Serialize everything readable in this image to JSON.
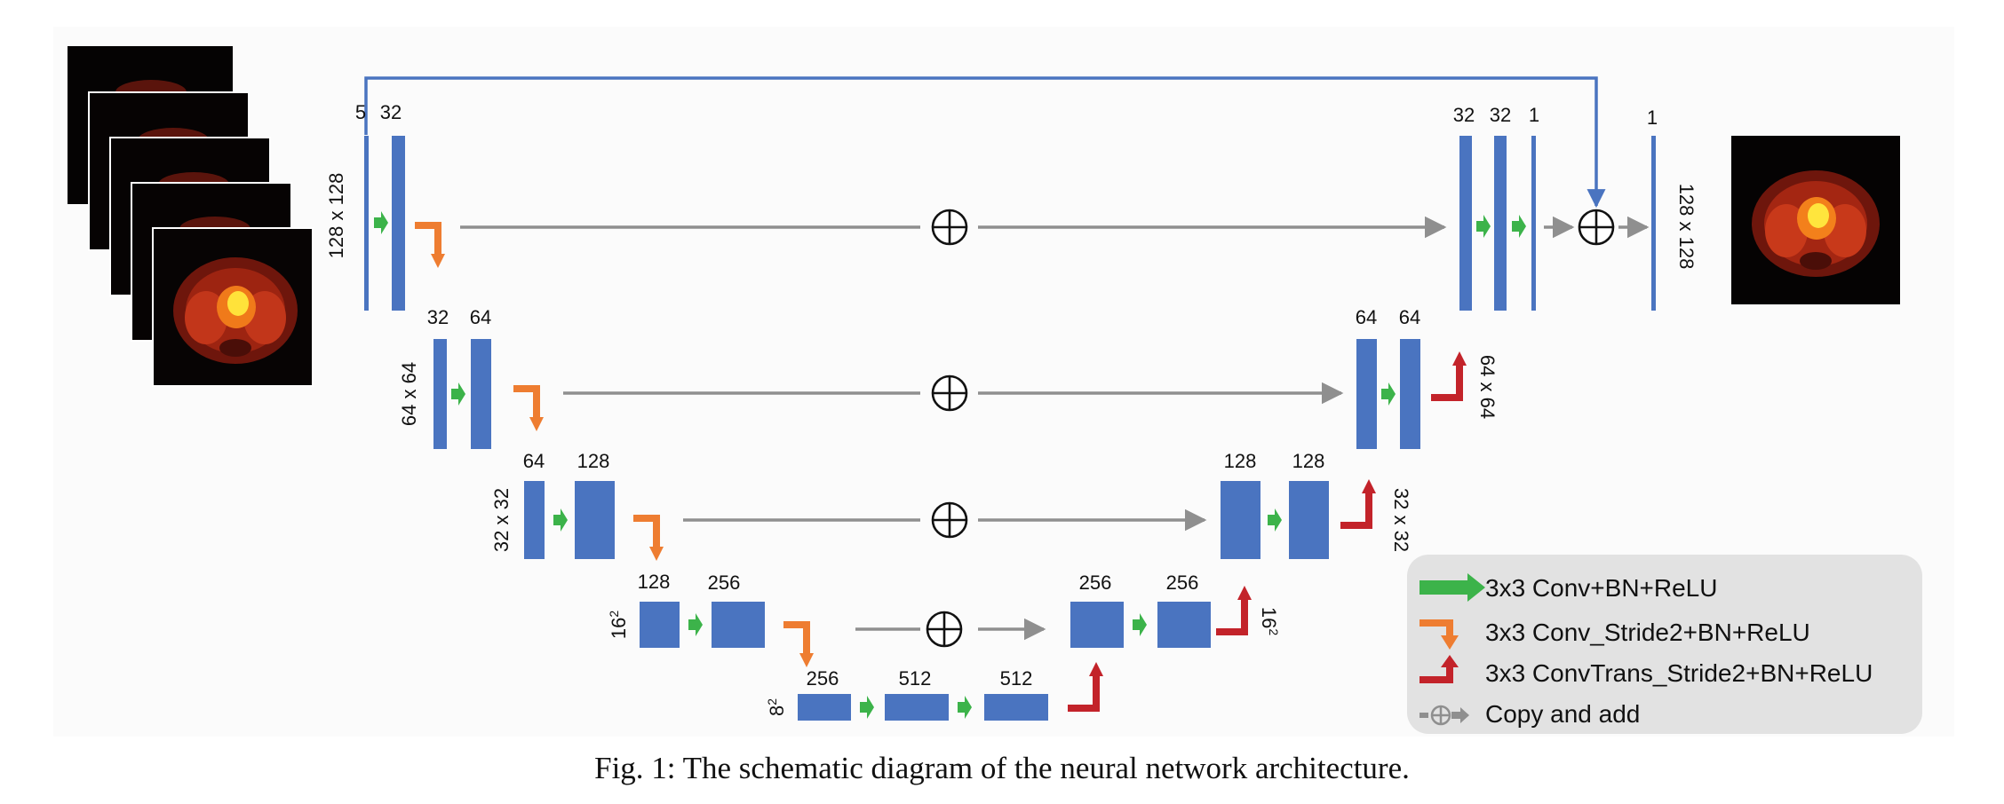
{
  "caption": "Fig. 1: The schematic diagram of the neural network architecture.",
  "colors": {
    "block": "#4a74c0",
    "conv": "#3cb34a",
    "down": "#ee7d31",
    "up": "#c3232a",
    "arrow": "#8f8f8f",
    "skip": "#4a74c0",
    "legend_bg": "#e2e2e2",
    "panel_bg": "#fbfbfb"
  },
  "levels": {
    "l1": {
      "size": "128 x 128",
      "ch_in": "5",
      "ch_a": "32",
      "dec_a": "32",
      "dec_b": "32",
      "dec_out": "1",
      "final": "1",
      "out_size": "128 x 128"
    },
    "l2": {
      "enc_a": "32",
      "enc_b": "64",
      "size": "64 x 64",
      "dec_a": "64",
      "dec_b": "64",
      "dec_size": "64 x 64"
    },
    "l3": {
      "enc_a": "64",
      "enc_b": "128",
      "size": "32 x 32",
      "dec_a": "128",
      "dec_b": "128",
      "dec_size": "32 x 32"
    },
    "l4": {
      "enc_a": "128",
      "enc_b": "256",
      "size": "16",
      "sup": "2",
      "dec_a": "256",
      "dec_b": "256",
      "dec_size": "16",
      "dec_sup": "2"
    },
    "l5": {
      "a": "256",
      "b": "512",
      "c": "512",
      "size": "8",
      "sup": "2"
    }
  },
  "legend": {
    "items": [
      {
        "icon": "green-arrow",
        "label": "3x3 Conv+BN+ReLU"
      },
      {
        "icon": "orange-down-arrow",
        "label": "3x3 Conv_Stride2+BN+ReLU"
      },
      {
        "icon": "red-up-arrow",
        "label": "3x3 ConvTrans_Stride2+BN+ReLU"
      },
      {
        "icon": "copy-add-icon",
        "label": "Copy and add"
      }
    ]
  }
}
